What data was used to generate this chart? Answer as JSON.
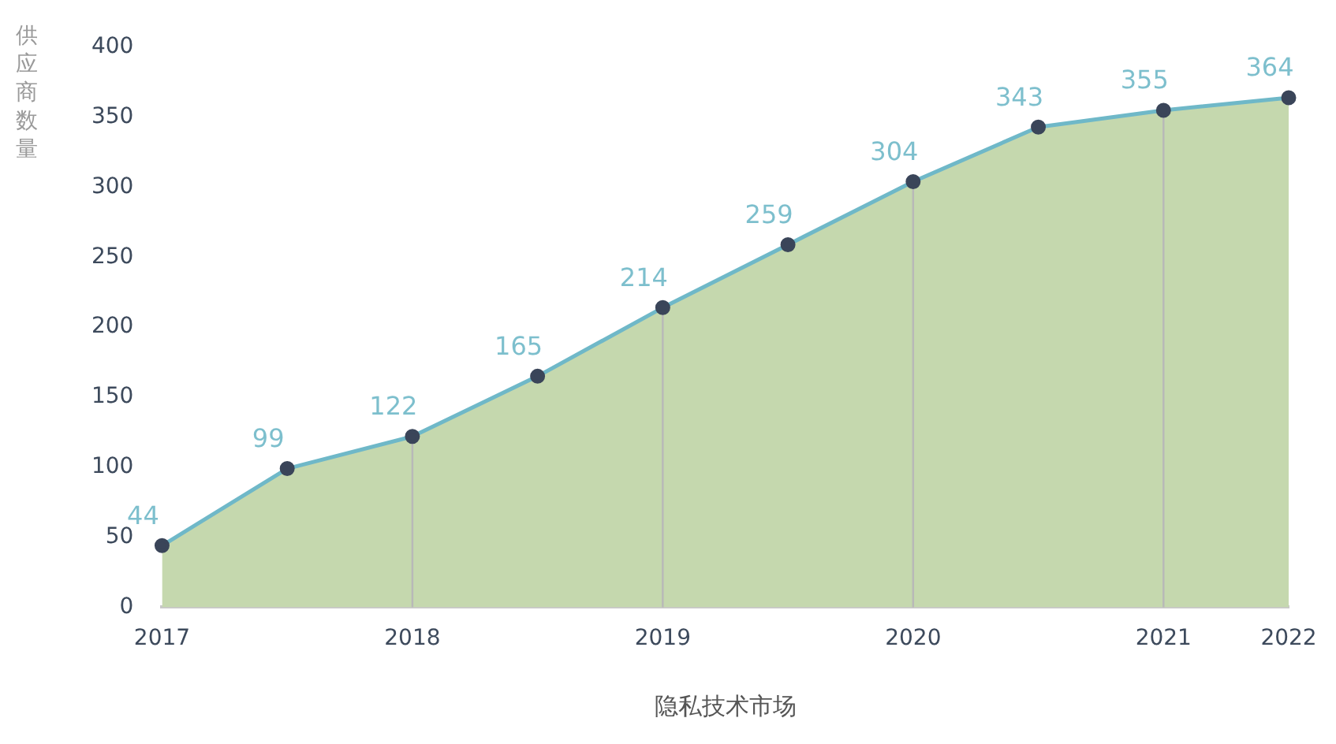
{
  "chart_data": {
    "type": "area",
    "xlabel": "隐私技术市场",
    "ylabel": "供应商数量",
    "categories": [
      "2017",
      null,
      "2018",
      null,
      "2019",
      null,
      "2020",
      null,
      "2021",
      "2022"
    ],
    "series": [
      {
        "type": "line",
        "color": "#6fb8c8",
        "values": [
          44,
          99,
          122,
          165,
          214,
          259,
          304,
          343,
          355,
          364
        ],
        "value_labels": [
          "44",
          "99",
          "122",
          "165",
          "214",
          "259",
          "304",
          "343",
          "355",
          "364"
        ]
      },
      {
        "color": "#c5d8ae",
        "values": [
          44,
          99,
          122,
          165,
          214,
          259,
          304,
          343,
          355,
          364
        ]
      }
    ],
    "ylim": [
      0,
      400
    ],
    "yticks": [
      0,
      50,
      100,
      150,
      200,
      250,
      300,
      350,
      400
    ],
    "grid": "x",
    "legend": false,
    "marker": "circle"
  }
}
